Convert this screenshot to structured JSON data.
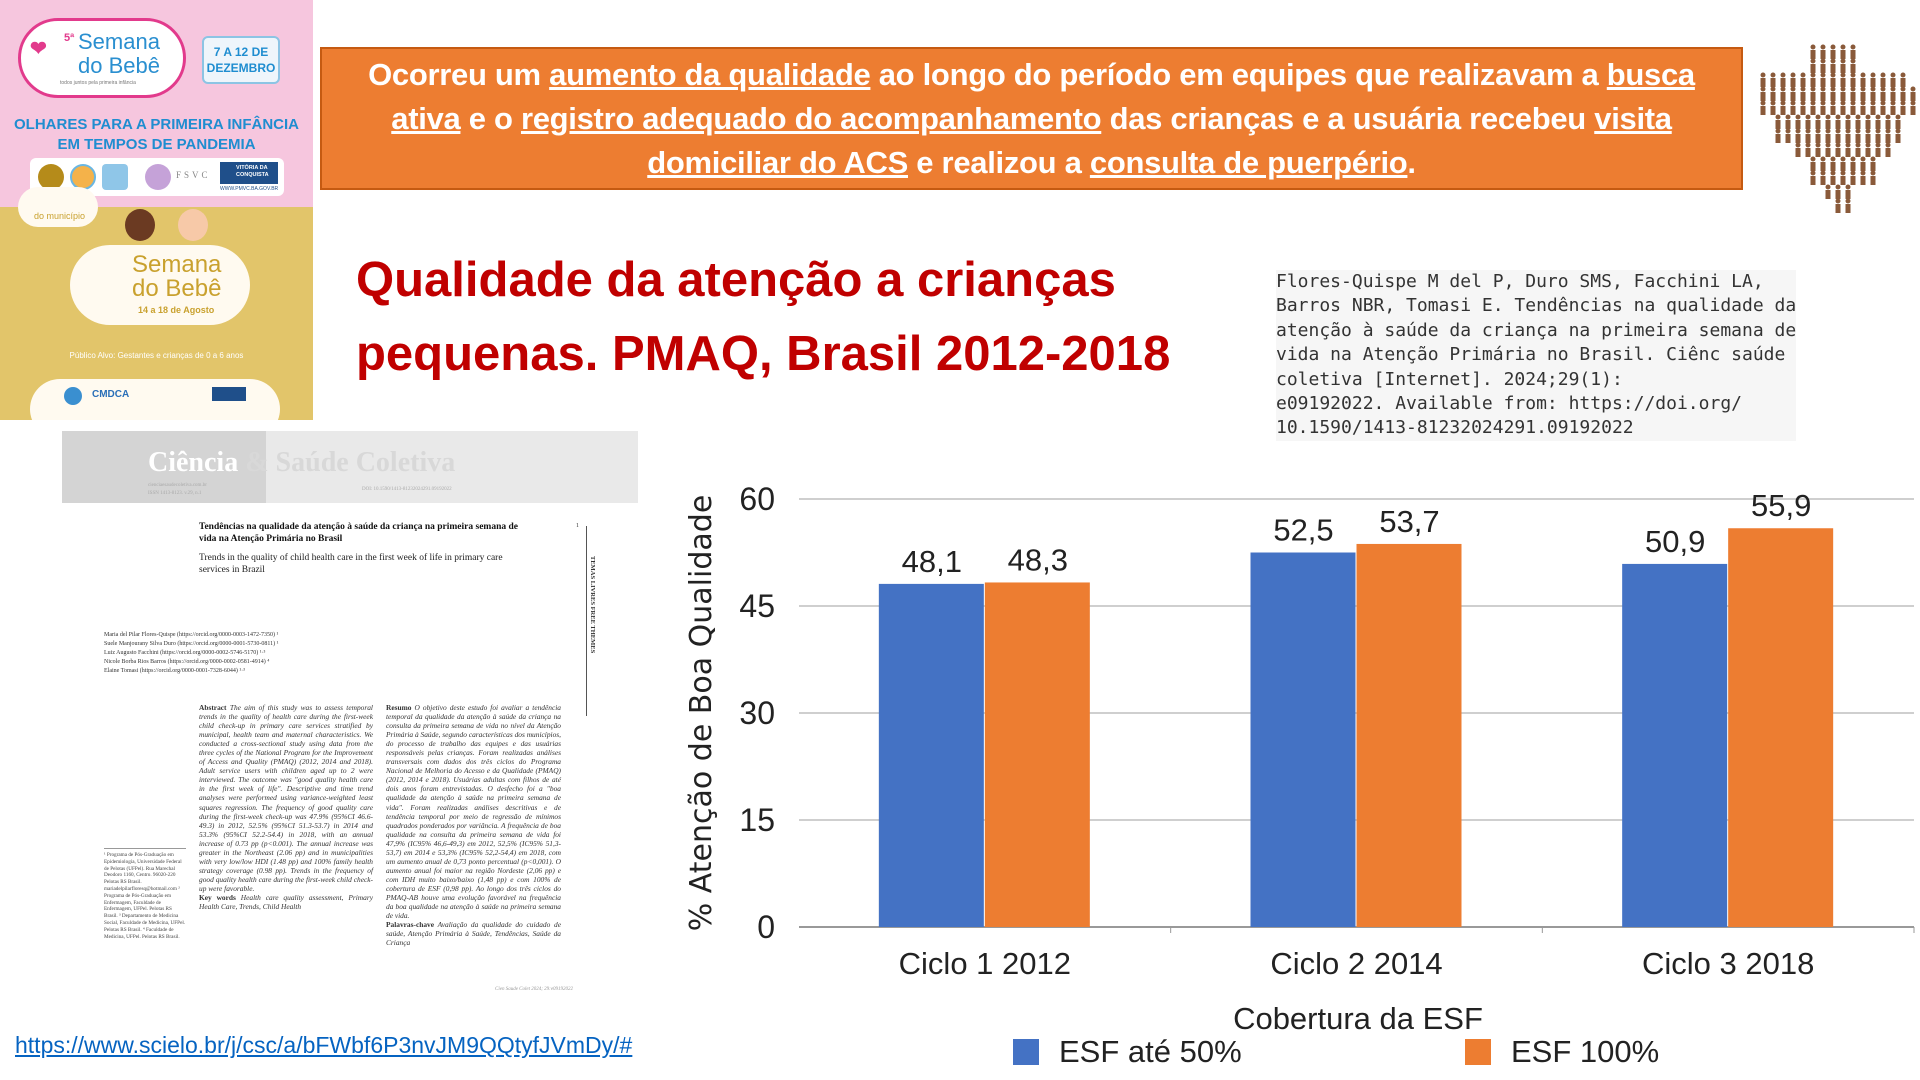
{
  "poster": {
    "top": {
      "edition": "5ª",
      "logo_text": "Semana do Bebê",
      "logo_tagline": "todos juntos pela primeira infância",
      "dates": "7 A 12 DE DEZEMBRO",
      "headline": [
        "OLHARES PARA A PRIMEIRA INFÂNCIA",
        "EM TEMPOS DE PANDEMIA"
      ],
      "sponsor_labels": [
        "FSVC",
        "VITÓRIA DA CONQUISTA"
      ],
      "website": "WWW.PMVC.BA.GOV.BR"
    },
    "bottom": {
      "corner_text": "do município",
      "logo_text": "Semana do Bebê",
      "dates": "14 a 18 de Agosto",
      "audience": "Público Alvo: Gestantes e crianças de 0 a 6 anos",
      "sponsor_labels": [
        "CMDCA"
      ]
    }
  },
  "banner": {
    "segments": [
      {
        "text": "Ocorreu um ",
        "u": false
      },
      {
        "text": "aumento da qualidade",
        "u": true
      },
      {
        "text": " ao longo do período em equipes que realizavam a ",
        "u": false
      },
      {
        "text": "busca ativa",
        "u": true
      },
      {
        "text": " e o ",
        "u": false
      },
      {
        "text": "registro adequado do acompanhamento",
        "u": true
      },
      {
        "text": " das crianças e a usuária recebeu ",
        "u": false
      },
      {
        "text": "visita domiciliar do ACS",
        "u": true
      },
      {
        "text": " e realizou a ",
        "u": false
      },
      {
        "text": "consulta de puerpério",
        "u": true
      },
      {
        "text": ".",
        "u": false
      }
    ],
    "bg_color": "#ed7d31"
  },
  "title": {
    "line1": "Qualidade da atenção a crianças",
    "line2": "pequenas. PMAQ, Brasil 2012-2018",
    "color": "#c00000"
  },
  "citation": "Flores-Quispe M del P, Duro SMS, Facchini LA,\nBarros NBR, Tomasi E. Tendências na qualidade da\natenção à saúde da criança na primeira semana de\nvida na Atenção Primária no Brasil. Ciênc saúde\ncoletiva [Internet]. 2024;29(1):\ne09192022. Available from: https://doi.org/\n10.1590/1413-81232024291.09192022",
  "article": {
    "journal_a": "Ciência",
    "journal_b": " & Saúde Coletiva",
    "site": "cienciaesaudecoletiva.com.br",
    "issn": "ISSN 1413-8123. v.29, n.1",
    "doi": "DOI: 10.1590/1413-81232024291.09192022",
    "page_number": "1",
    "section": "TEMAS LIVRES   FREE THEMES",
    "title_pt": "Tendências na qualidade da atenção à saúde da criança na primeira semana de vida na Atenção Primária no Brasil",
    "title_en": "Trends in the quality of child health care in the first week of life in primary care services in Brazil",
    "authors": "Maria del Pilar Flores-Quispe (https://orcid.org/0000-0003-1472-7350) ¹\nSuele Manjourany Silva Duro (https://orcid.org/0000-0001-5730-0811) ¹\nLuiz Augusto Facchini (https://orcid.org/0000-0002-5746-5170) ¹·³\nNicole Borba Rios Barros (https://orcid.org/0000-0002-0581-4914) ⁴\nElaine Tomasi (https://orcid.org/0000-0001-7328-6044) ¹·³",
    "abstract_label": "Abstract",
    "abstract": "The aim of this study was to assess temporal trends in the quality of health care during the first-week child check-up in primary care services stratified by municipal, health team and maternal characteristics. We conducted a cross-sectional study using data from the three cycles of the National Program for the Improvement of Access and Quality (PMAQ) (2012, 2014 and 2018). Adult service users with children aged up to 2 were interviewed. The outcome was \"good quality health care in the first week of life\". Descriptive and time trend analyses were performed using variance-weighted least squares regression. The frequency of good quality care during the first-week check-up was 47.9% (95%CI 46.6-49.3) in 2012, 52.5% (95%CI 51.3-53.7) in 2014 and 53.3% (95%CI 52.2-54.4) in 2018, with an annual increase of 0.73 pp (p<0.001). The annual increase was greater in the Northeast (2.06 pp) and in municipalities with very low/low HDI (1.48 pp) and 100% family health strategy coverage (0.98 pp). Trends in the frequency of good quality health care during the first-week child check-up were favorable.",
    "keywords_label": "Key words",
    "keywords": "Health care quality assessment, Primary Health Care, Trends, Child Health",
    "resumo_label": "Resumo",
    "resumo": "O objetivo deste estudo foi avaliar a tendência temporal da qualidade da atenção à saúde da criança na consulta da primeira semana de vida no nível da Atenção Primária à Saúde, segundo características dos municípios, do processo de trabalho das equipes e das usuárias responsáveis pelas crianças. Foram realizadas análises transversais com dados dos três ciclos do Programa Nacional de Melhoria do Acesso e da Qualidade (PMAQ) (2012, 2014 e 2018). Usuárias adultas com filhos de até dois anos foram entrevistadas. O desfecho foi a \"boa qualidade da atenção à saúde na primeira semana de vida\". Foram realizadas análises descritivas e de tendência temporal por meio de regressão de mínimos quadrados ponderados por variância. A frequência de boa qualidade na consulta da primeira semana de vida foi 47,9% (IC95% 46,6-49,3) em 2012, 52,5% (IC95% 51,3-53,7) em 2014 e 53,3% (IC95% 52,2-54,4) em 2018, com um aumento anual de 0,73 ponto percentual (p<0,001). O aumento anual foi maior na região Nordeste (2,06 pp) e com IDH muito baixo/baixo (1,48 pp) e com 100% de cobertura de ESF (0,98 pp). Ao longo dos três ciclos do PMAQ-AB houve uma evolução favorável na frequência da boa qualidade na atenção à saúde na primeira semana de vida.",
    "palavras_label": "Palavras-chave",
    "palavras": "Avaliação da qualidade do cuidado de saúde, Atenção Primária à Saúde, Tendências, Saúde da Criança",
    "footnotes": "¹ Programa de Pós-Graduação em Epidemiologia, Universidade Federal de Pelotas (UFPel). Rua Marechal Deodoro 1160, Centro. 96020-220 Pelotas RS Brasil. mariadelpilarfloresq@hotmail.com ² Programa de Pós-Graduação em Enfermagem, Faculdade de Enfermagem, UFPel. Pelotas RS Brasil. ³ Departamento de Medicina Social, Faculdade de Medicina, UFPel. Pelotas RS Brasil. ⁴ Faculdade de Medicina, UFPel. Pelotas RS Brasil.",
    "journal_footer": "Cien Saude Colet 2024; 29:e09192022"
  },
  "link": "https://www.scielo.br/j/csc/a/bFWbf6P3nvJM9QQtyfJVmDy/#",
  "chart_data": {
    "type": "bar",
    "categories": [
      "Ciclo 1 2012",
      "Ciclo 2 2014",
      "Ciclo 3 2018"
    ],
    "series": [
      {
        "name": "ESF até 50%",
        "values": [
          48.1,
          52.5,
          50.9
        ],
        "labels": [
          "48,1",
          "52,5",
          "50,9"
        ],
        "color": "#4472c4"
      },
      {
        "name": "ESF 100%",
        "values": [
          48.3,
          53.7,
          55.9
        ],
        "labels": [
          "48,3",
          "53,7",
          "55,9"
        ],
        "color": "#ed7d31"
      }
    ],
    "xlabel": "Cobertura da ESF",
    "ylabel": "% Atenção de Boa Qualidade",
    "ylim": [
      0,
      60
    ],
    "yticks": [
      0,
      15,
      30,
      45,
      60
    ],
    "grid": true,
    "legend": "bottom"
  }
}
